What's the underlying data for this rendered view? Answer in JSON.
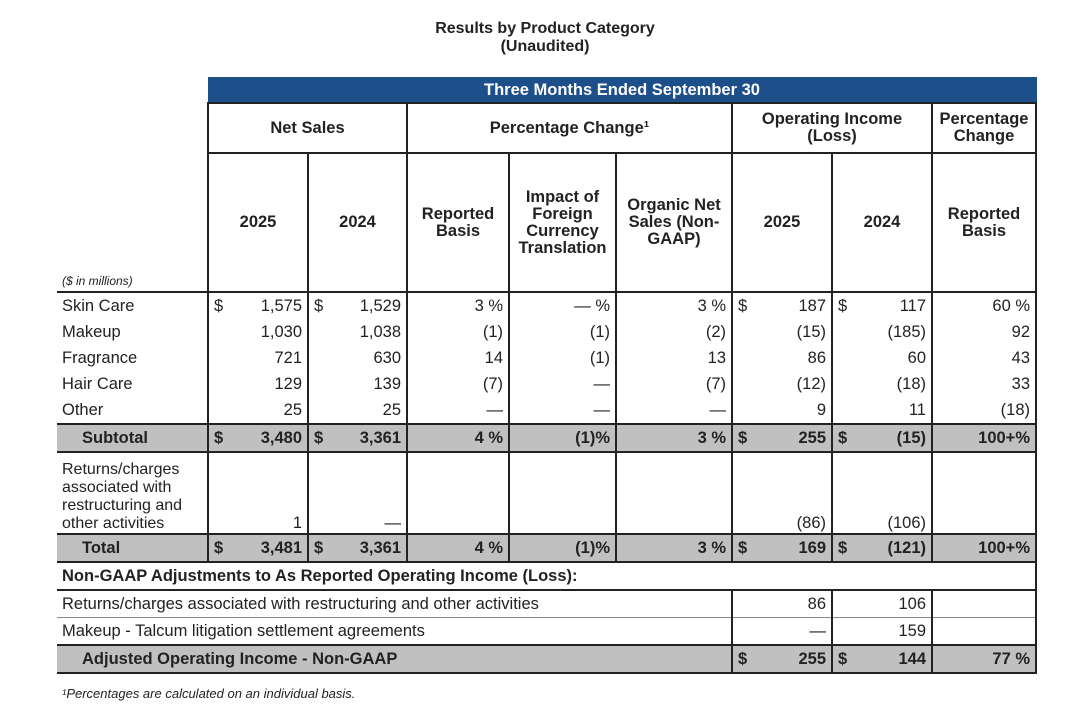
{
  "title": "Results by Product Category",
  "subtitle": "(Unaudited)",
  "banner": "Three Months Ended September 30",
  "groups": {
    "net_sales": "Net Sales",
    "pct_change": "Percentage Change¹",
    "op_income": "Operating Income (Loss)",
    "pct_change2": "Percentage Change"
  },
  "columns": [
    "2025",
    "2024",
    "Reported Basis",
    "Impact of Foreign Currency Translation",
    "Organic Net Sales (Non-GAAP)",
    "2025",
    "2024",
    "Reported Basis"
  ],
  "units": "($ in millions)",
  "rows": [
    {
      "label": "Skin Care",
      "cells": [
        {
          "c": "$",
          "v": "1,575"
        },
        {
          "c": "$",
          "v": "1,529"
        },
        {
          "v": "3 %"
        },
        {
          "v": "— %"
        },
        {
          "v": "3 %"
        },
        {
          "c": "$",
          "v": "187"
        },
        {
          "c": "$",
          "v": "117"
        },
        {
          "v": "60 %"
        }
      ]
    },
    {
      "label": "Makeup",
      "cells": [
        {
          "v": "1,030"
        },
        {
          "v": "1,038"
        },
        {
          "v": "(1)"
        },
        {
          "v": "(1)"
        },
        {
          "v": "(2)"
        },
        {
          "v": "(15)"
        },
        {
          "v": "(185)"
        },
        {
          "v": "92"
        }
      ]
    },
    {
      "label": "Fragrance",
      "cells": [
        {
          "v": "721"
        },
        {
          "v": "630"
        },
        {
          "v": "14"
        },
        {
          "v": "(1)"
        },
        {
          "v": "13"
        },
        {
          "v": "86"
        },
        {
          "v": "60"
        },
        {
          "v": "43"
        }
      ]
    },
    {
      "label": "Hair Care",
      "cells": [
        {
          "v": "129"
        },
        {
          "v": "139"
        },
        {
          "v": "(7)"
        },
        {
          "v": "—"
        },
        {
          "v": "(7)"
        },
        {
          "v": "(12)"
        },
        {
          "v": "(18)"
        },
        {
          "v": "33"
        }
      ]
    },
    {
      "label": "Other",
      "cells": [
        {
          "v": "25"
        },
        {
          "v": "25"
        },
        {
          "v": "—"
        },
        {
          "v": "—"
        },
        {
          "v": "—"
        },
        {
          "v": "9"
        },
        {
          "v": "11"
        },
        {
          "v": "(18)"
        }
      ]
    },
    {
      "label": "Subtotal",
      "style": "gray",
      "cells": [
        {
          "c": "$",
          "v": "3,480"
        },
        {
          "c": "$",
          "v": "3,361"
        },
        {
          "v": "4 %"
        },
        {
          "v": "(1)%"
        },
        {
          "v": "3 %"
        },
        {
          "c": "$",
          "v": "255"
        },
        {
          "c": "$",
          "v": "(15)"
        },
        {
          "v": "100+%"
        }
      ]
    },
    {
      "label": "Returns/charges associated with restructuring and other activities",
      "style": "tall",
      "cells": [
        {
          "v": "1"
        },
        {
          "v": "—"
        },
        {
          "v": ""
        },
        {
          "v": ""
        },
        {
          "v": ""
        },
        {
          "v": "(86)"
        },
        {
          "v": "(106)"
        },
        {
          "v": ""
        }
      ]
    },
    {
      "label": "Total",
      "style": "gray",
      "cells": [
        {
          "c": "$",
          "v": "3,481"
        },
        {
          "c": "$",
          "v": "3,361"
        },
        {
          "v": "4 %"
        },
        {
          "v": "(1)%"
        },
        {
          "v": "3 %"
        },
        {
          "c": "$",
          "v": "169"
        },
        {
          "c": "$",
          "v": "(121)"
        },
        {
          "v": "100+%"
        }
      ]
    }
  ],
  "non_gaap": {
    "heading": "Non-GAAP Adjustments to As Reported Operating Income (Loss):",
    "rows": [
      {
        "label": "Returns/charges associated with restructuring and other activities",
        "cells": [
          {
            "v": "86"
          },
          {
            "v": "106"
          },
          {
            "v": ""
          }
        ]
      },
      {
        "label": "Makeup - Talcum litigation settlement agreements",
        "cells": [
          {
            "v": "—"
          },
          {
            "v": "159"
          },
          {
            "v": ""
          }
        ]
      },
      {
        "label": "Adjusted Operating Income - Non-GAAP",
        "style": "gray",
        "cells": [
          {
            "c": "$",
            "v": "255"
          },
          {
            "c": "$",
            "v": "144"
          },
          {
            "v": "77 %"
          }
        ]
      }
    ]
  },
  "footnote": "¹Percentages are calculated on an individual basis.",
  "colors": {
    "banner": "#1d4f8b",
    "subtotal_fill": "#c0c0c0"
  }
}
